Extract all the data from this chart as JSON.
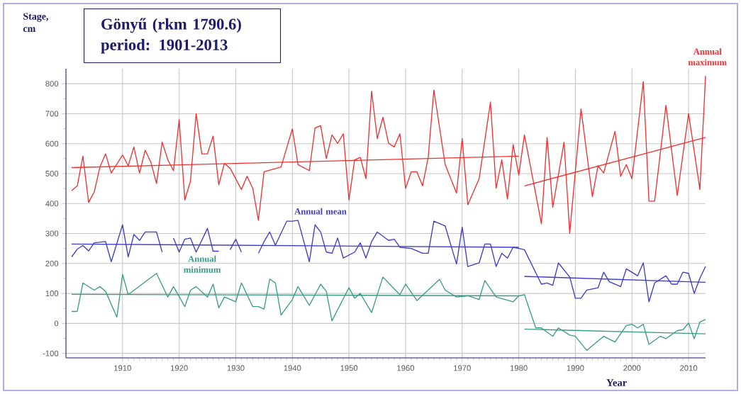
{
  "chart_data": {
    "type": "line",
    "title": "Gönyű (rkm 1790.6)",
    "subtitle": "period: 1901-2013",
    "xlabel": "Year",
    "ylabel": "Stage, cm",
    "xlim": [
      1900,
      2013
    ],
    "ylim": [
      -115,
      850
    ],
    "xticks": [
      1910,
      1920,
      1930,
      1940,
      1950,
      1960,
      1970,
      1980,
      1990,
      2000,
      2010
    ],
    "yticks": [
      -100,
      0,
      100,
      200,
      300,
      400,
      500,
      600,
      700,
      800
    ],
    "grid": true,
    "series": [
      {
        "name": "Annual maximum",
        "color": "#f03030",
        "x": [
          1901,
          1902,
          1903,
          1904,
          1905,
          1906,
          1907,
          1908,
          1910,
          1911,
          1912,
          1913,
          1914,
          1915,
          1916,
          1917,
          1918,
          1919,
          1920,
          1921,
          1922,
          1923,
          1924,
          1925,
          1926,
          1927,
          1928,
          1929,
          1931,
          1932,
          1933,
          1934,
          1935,
          1938,
          1940,
          1941,
          1943,
          1944,
          1945,
          1946,
          1947,
          1948,
          1949,
          1950,
          1951,
          1952,
          1953,
          1954,
          1955,
          1956,
          1957,
          1958,
          1959,
          1960,
          1961,
          1962,
          1963,
          1964,
          1965,
          1967,
          1969,
          1970,
          1971,
          1973,
          1975,
          1976,
          1977,
          1978,
          1979,
          1980,
          1981,
          1984,
          1985,
          1986,
          1988,
          1989,
          1991,
          1993,
          1994,
          1995,
          1997,
          1998,
          1999,
          2000,
          2002,
          2003,
          2004,
          2006,
          2008,
          2010,
          2012,
          2013
        ],
        "values": [
          443,
          459,
          558,
          404,
          439,
          522,
          566,
          502,
          562,
          526,
          589,
          502,
          578,
          538,
          467,
          605,
          546,
          510,
          680,
          412,
          475,
          700,
          566,
          566,
          625,
          463,
          534,
          518,
          447,
          491,
          451,
          344,
          506,
          522,
          649,
          530,
          510,
          652,
          660,
          550,
          629,
          601,
          633,
          412,
          546,
          554,
          483,
          775,
          617,
          688,
          601,
          589,
          633,
          451,
          506,
          506,
          459,
          554,
          779,
          530,
          435,
          617,
          396,
          483,
          739,
          451,
          546,
          415,
          597,
          495,
          629,
          333,
          621,
          388,
          605,
          301,
          716,
          423,
          526,
          502,
          641,
          491,
          530,
          483,
          807,
          408,
          408,
          728,
          427,
          700,
          447,
          826
        ]
      },
      {
        "name": "Annual mean",
        "color": "#3c3cc8",
        "x": [
          1901,
          1902,
          1903,
          1904,
          1905,
          1907,
          1908,
          1910,
          1911,
          1912,
          1913,
          1914,
          1916,
          1917,
          1918,
          1919,
          1920,
          1921,
          1922,
          1923,
          1925,
          1926,
          1927,
          1928,
          1929,
          1930,
          1931,
          1932,
          1934,
          1935,
          1936,
          1937,
          1939,
          1940,
          1941,
          1943,
          1944,
          1945,
          1946,
          1947,
          1948,
          1949,
          1951,
          1952,
          1953,
          1954,
          1955,
          1957,
          1958,
          1959,
          1961,
          1963,
          1964,
          1965,
          1967,
          1969,
          1970,
          1971,
          1973,
          1974,
          1975,
          1976,
          1977,
          1978,
          1979,
          1980,
          1981,
          1984,
          1985,
          1986,
          1987,
          1989,
          1990,
          1991,
          1992,
          1994,
          1995,
          1996,
          1998,
          1999,
          2001,
          2002,
          2003,
          2004,
          2006,
          2007,
          2008,
          2009,
          2010,
          2011,
          2012,
          2013
        ],
        "values": [
          222,
          248,
          260,
          242,
          269,
          273,
          206,
          329,
          222,
          297,
          277,
          305,
          305,
          238,
          null,
          285,
          238,
          281,
          285,
          238,
          317,
          241,
          241,
          null,
          246,
          281,
          238,
          null,
          234,
          273,
          305,
          261,
          341,
          341,
          344,
          206,
          329,
          305,
          238,
          234,
          285,
          218,
          238,
          269,
          218,
          273,
          305,
          277,
          281,
          254,
          250,
          234,
          234,
          341,
          325,
          198,
          321,
          190,
          202,
          265,
          265,
          190,
          234,
          218,
          254,
          250,
          246,
          131,
          135,
          127,
          202,
          155,
          84,
          84,
          111,
          119,
          171,
          139,
          123,
          182,
          159,
          202,
          72,
          135,
          159,
          131,
          131,
          171,
          167,
          100,
          151,
          190
        ]
      },
      {
        "name": "Annual minimum",
        "color": "#3a9c86",
        "x": [
          1901,
          1902,
          1903,
          1905,
          1906,
          1907,
          1909,
          1910,
          1911,
          1916,
          1918,
          1919,
          1921,
          1922,
          1923,
          1925,
          1926,
          1927,
          1928,
          1930,
          1931,
          1933,
          1934,
          1935,
          1936,
          1937,
          1938,
          1940,
          1941,
          1943,
          1945,
          1946,
          1947,
          1950,
          1951,
          1952,
          1954,
          1956,
          1958,
          1959,
          1960,
          1962,
          1966,
          1967,
          1969,
          1971,
          1973,
          1974,
          1976,
          1979,
          1980,
          1981,
          1983,
          1984,
          1986,
          1987,
          1989,
          1990,
          1992,
          1995,
          1997,
          1999,
          2000,
          2001,
          2002,
          2003,
          2005,
          2006,
          2008,
          2009,
          2010,
          2011,
          2012,
          2013
        ],
        "values": [
          40,
          40,
          135,
          111,
          123,
          107,
          21,
          163,
          96,
          167,
          88,
          123,
          56,
          111,
          123,
          88,
          131,
          52,
          88,
          72,
          135,
          56,
          56,
          48,
          148,
          135,
          28,
          80,
          123,
          60,
          131,
          107,
          9,
          119,
          84,
          100,
          36,
          155,
          115,
          96,
          131,
          76,
          147,
          111,
          88,
          92,
          80,
          143,
          88,
          72,
          92,
          96,
          -15,
          -15,
          -43,
          -15,
          -39,
          -43,
          -90,
          -43,
          -62,
          -7,
          -3,
          -15,
          -3,
          -70,
          -43,
          -51,
          -24,
          -21,
          1,
          -51,
          5,
          13
        ]
      },
      {
        "color": "#f03030",
        "x": [
          1901,
          1980
        ],
        "values": [
          520,
          558
        ]
      },
      {
        "color": "#f03030",
        "x": [
          1981,
          2013
        ],
        "values": [
          459,
          621
        ]
      },
      {
        "color": "#3c3cc8",
        "x": [
          1901,
          1980
        ],
        "values": [
          265,
          254
        ]
      },
      {
        "color": "#3c3cc8",
        "x": [
          1981,
          2013
        ],
        "values": [
          157,
          137
        ]
      },
      {
        "color": "#3a9c86",
        "x": [
          1901,
          1980
        ],
        "values": [
          97,
          92
        ]
      },
      {
        "color": "#3a9c86",
        "x": [
          1981,
          2013
        ],
        "values": [
          -19,
          -35
        ]
      }
    ]
  }
}
